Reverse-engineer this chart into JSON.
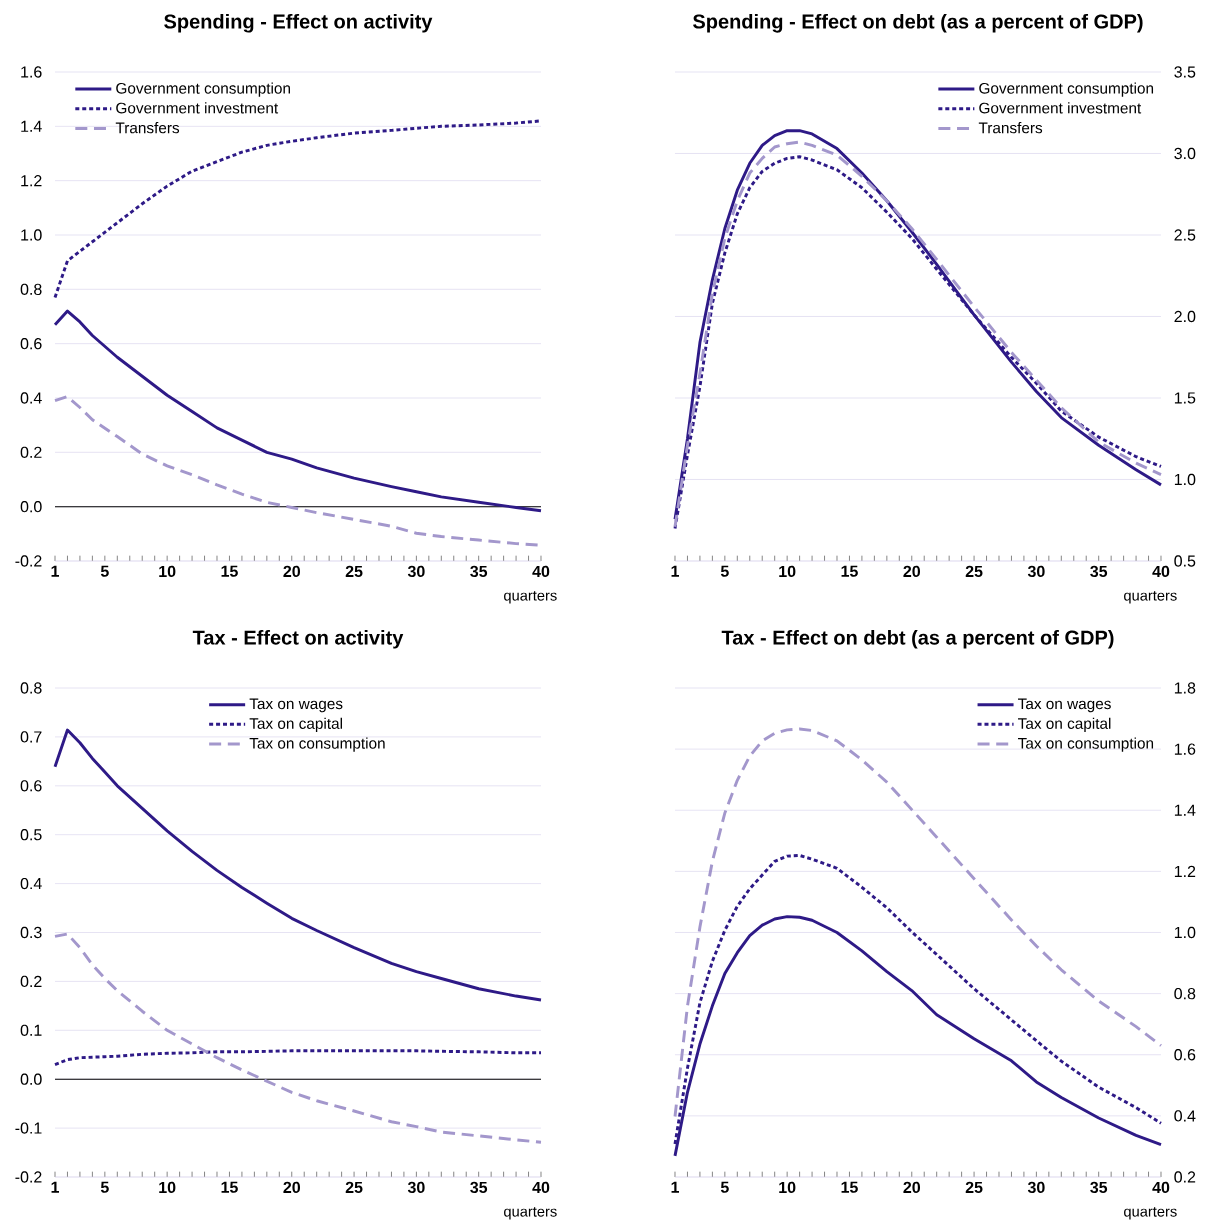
{
  "chart_data": [
    {
      "type": "line",
      "title": "Spending - Effect on activity",
      "xlabel": "quarters",
      "grid": "y",
      "legend": "top left",
      "x": [
        1,
        2,
        3,
        4,
        6,
        8,
        10,
        12,
        14,
        16,
        18,
        20,
        22,
        25,
        28,
        30,
        32,
        35,
        38,
        40
      ],
      "xlim": [
        1,
        40
      ],
      "xticks": [
        1,
        {
          "value": 2,
          "label": null
        },
        {
          "value": 3,
          "label": null
        },
        {
          "value": 4,
          "label": null
        },
        5,
        {
          "value": 6,
          "label": null
        },
        {
          "value": 7,
          "label": null
        },
        {
          "value": 8,
          "label": null
        },
        {
          "value": 9,
          "label": null
        },
        10,
        {
          "value": 11,
          "label": null
        },
        {
          "value": 12,
          "label": null
        },
        {
          "value": 13,
          "label": null
        },
        {
          "value": 14,
          "label": null
        },
        15,
        {
          "value": 16,
          "label": null
        },
        {
          "value": 17,
          "label": null
        },
        {
          "value": 18,
          "label": null
        },
        {
          "value": 19,
          "label": null
        },
        20,
        {
          "value": 21,
          "label": null
        },
        {
          "value": 22,
          "label": null
        },
        {
          "value": 23,
          "label": null
        },
        {
          "value": 24,
          "label": null
        },
        25,
        {
          "value": 26,
          "label": null
        },
        {
          "value": 27,
          "label": null
        },
        {
          "value": 28,
          "label": null
        },
        {
          "value": 29,
          "label": null
        },
        30,
        {
          "value": 31,
          "label": null
        },
        {
          "value": 32,
          "label": null
        },
        {
          "value": 33,
          "label": null
        },
        {
          "value": 34,
          "label": null
        },
        35,
        {
          "value": 36,
          "label": null
        },
        {
          "value": 37,
          "label": null
        },
        {
          "value": 38,
          "label": null
        },
        {
          "value": 39,
          "label": null
        },
        40
      ],
      "ylim": [
        -0.2,
        1.6
      ],
      "yticks": [
        {
          "value": -0.2,
          "label": "-0.2"
        },
        {
          "value": 0,
          "label": "0.0"
        },
        {
          "value": 0.2,
          "label": "0.2"
        },
        {
          "value": 0.4,
          "label": "0.4"
        },
        {
          "value": 0.6,
          "label": "0.6"
        },
        {
          "value": 0.8,
          "label": "0.8"
        },
        {
          "value": 1,
          "label": "1.0"
        },
        {
          "value": 1.2,
          "label": "1.2"
        },
        {
          "value": 1.4,
          "label": "1.4"
        },
        {
          "value": 1.6,
          "label": "1.6"
        }
      ],
      "ref_lines": [
        {
          "axis": "y",
          "value": 0,
          "color": "#000000"
        }
      ],
      "series": [
        {
          "name": "Government consumption",
          "color": "#2e1a87",
          "line_style": "solid",
          "values": [
            0.67,
            0.72,
            0.68,
            0.63,
            0.55,
            0.48,
            0.41,
            0.35,
            0.29,
            0.245,
            0.2,
            0.175,
            0.143,
            0.105,
            0.074,
            0.055,
            0.036,
            0.016,
            -0.003,
            -0.015
          ]
        },
        {
          "name": "Government investment",
          "color": "#2e1a87",
          "line_style": "dotted",
          "values": [
            0.77,
            0.905,
            0.94,
            0.975,
            1.045,
            1.115,
            1.18,
            1.235,
            1.27,
            1.305,
            1.33,
            1.345,
            1.358,
            1.375,
            1.385,
            1.393,
            1.4,
            1.405,
            1.412,
            1.42
          ]
        },
        {
          "name": "Transfers",
          "color": "#a397cc",
          "line_style": "dashed",
          "values": [
            0.39,
            0.405,
            0.365,
            0.32,
            0.258,
            0.194,
            0.15,
            0.118,
            0.08,
            0.046,
            0.016,
            -0.003,
            -0.022,
            -0.047,
            -0.072,
            -0.098,
            -0.11,
            -0.123,
            -0.136,
            -0.142
          ]
        }
      ]
    },
    {
      "type": "line",
      "title": "Spending - Effect on debt (as a percent of GDP)",
      "xlabel": "quarters",
      "grid": "y",
      "legend": "top right",
      "x": [
        1,
        2,
        3,
        4,
        5,
        6,
        7,
        8,
        9,
        10,
        11,
        12,
        14,
        16,
        18,
        20,
        22,
        25,
        28,
        30,
        32,
        35,
        38,
        40
      ],
      "xlim": [
        1,
        40
      ],
      "xticks": [
        1,
        {
          "value": 2,
          "label": null
        },
        {
          "value": 3,
          "label": null
        },
        {
          "value": 4,
          "label": null
        },
        5,
        {
          "value": 6,
          "label": null
        },
        {
          "value": 7,
          "label": null
        },
        {
          "value": 8,
          "label": null
        },
        {
          "value": 9,
          "label": null
        },
        10,
        {
          "value": 11,
          "label": null
        },
        {
          "value": 12,
          "label": null
        },
        {
          "value": 13,
          "label": null
        },
        {
          "value": 14,
          "label": null
        },
        15,
        {
          "value": 16,
          "label": null
        },
        {
          "value": 17,
          "label": null
        },
        {
          "value": 18,
          "label": null
        },
        {
          "value": 19,
          "label": null
        },
        20,
        {
          "value": 21,
          "label": null
        },
        {
          "value": 22,
          "label": null
        },
        {
          "value": 23,
          "label": null
        },
        {
          "value": 24,
          "label": null
        },
        25,
        {
          "value": 26,
          "label": null
        },
        {
          "value": 27,
          "label": null
        },
        {
          "value": 28,
          "label": null
        },
        {
          "value": 29,
          "label": null
        },
        30,
        {
          "value": 31,
          "label": null
        },
        {
          "value": 32,
          "label": null
        },
        {
          "value": 33,
          "label": null
        },
        {
          "value": 34,
          "label": null
        },
        35,
        {
          "value": 36,
          "label": null
        },
        {
          "value": 37,
          "label": null
        },
        {
          "value": 38,
          "label": null
        },
        {
          "value": 39,
          "label": null
        },
        40
      ],
      "y2lim": [
        0.5,
        3.5
      ],
      "y2ticks": [
        0.5,
        {
          "value": 1,
          "label": "1.0"
        },
        1.5,
        {
          "value": 2,
          "label": "2.0"
        },
        2.5,
        {
          "value": 3,
          "label": "3.0"
        },
        3.5
      ],
      "series": [
        {
          "name": "Government consumption",
          "color": "#2e1a87",
          "line_style": "solid",
          "axis": "y2",
          "values": [
            0.756,
            1.25,
            1.84,
            2.225,
            2.54,
            2.775,
            2.94,
            3.05,
            3.11,
            3.14,
            3.14,
            3.12,
            3.03,
            2.88,
            2.71,
            2.52,
            2.32,
            2.01,
            1.72,
            1.54,
            1.38,
            1.21,
            1.06,
            0.967
          ]
        },
        {
          "name": "Government investment",
          "color": "#2e1a87",
          "line_style": "dotted",
          "axis": "y2",
          "values": [
            0.7,
            1.15,
            1.57,
            2.08,
            2.39,
            2.63,
            2.79,
            2.89,
            2.94,
            2.97,
            2.98,
            2.96,
            2.9,
            2.79,
            2.64,
            2.48,
            2.29,
            2.01,
            1.75,
            1.59,
            1.42,
            1.26,
            1.14,
            1.08
          ]
        },
        {
          "name": "Transfers",
          "color": "#a397cc",
          "line_style": "dashed",
          "axis": "y2",
          "values": [
            0.71,
            1.21,
            1.65,
            2.14,
            2.48,
            2.71,
            2.88,
            2.97,
            3.04,
            3.06,
            3.07,
            3.05,
            2.99,
            2.86,
            2.71,
            2.54,
            2.35,
            2.06,
            1.78,
            1.61,
            1.44,
            1.23,
            1.1,
            1.03
          ]
        }
      ]
    },
    {
      "type": "line",
      "title": "Tax - Effect on activity",
      "xlabel": "quarters",
      "grid": "y",
      "legend": "top",
      "x": [
        1,
        2,
        3,
        4,
        5,
        6,
        8,
        10,
        12,
        14,
        16,
        18,
        20,
        22,
        25,
        28,
        30,
        32,
        35,
        38,
        40
      ],
      "xlim": [
        1,
        40
      ],
      "xticks": [
        1,
        {
          "value": 2,
          "label": null
        },
        {
          "value": 3,
          "label": null
        },
        {
          "value": 4,
          "label": null
        },
        5,
        {
          "value": 6,
          "label": null
        },
        {
          "value": 7,
          "label": null
        },
        {
          "value": 8,
          "label": null
        },
        {
          "value": 9,
          "label": null
        },
        10,
        {
          "value": 11,
          "label": null
        },
        {
          "value": 12,
          "label": null
        },
        {
          "value": 13,
          "label": null
        },
        {
          "value": 14,
          "label": null
        },
        15,
        {
          "value": 16,
          "label": null
        },
        {
          "value": 17,
          "label": null
        },
        {
          "value": 18,
          "label": null
        },
        {
          "value": 19,
          "label": null
        },
        20,
        {
          "value": 21,
          "label": null
        },
        {
          "value": 22,
          "label": null
        },
        {
          "value": 23,
          "label": null
        },
        {
          "value": 24,
          "label": null
        },
        25,
        {
          "value": 26,
          "label": null
        },
        {
          "value": 27,
          "label": null
        },
        {
          "value": 28,
          "label": null
        },
        {
          "value": 29,
          "label": null
        },
        30,
        {
          "value": 31,
          "label": null
        },
        {
          "value": 32,
          "label": null
        },
        {
          "value": 33,
          "label": null
        },
        {
          "value": 34,
          "label": null
        },
        35,
        {
          "value": 36,
          "label": null
        },
        {
          "value": 37,
          "label": null
        },
        {
          "value": 38,
          "label": null
        },
        {
          "value": 39,
          "label": null
        },
        40
      ],
      "ylim": [
        -0.2,
        0.8
      ],
      "yticks": [
        -0.2,
        -0.1,
        {
          "value": 0,
          "label": "0.0"
        },
        0.1,
        0.2,
        0.3,
        0.4,
        0.5,
        0.6,
        0.7,
        0.8
      ],
      "ref_lines": [
        {
          "axis": "y",
          "value": 0,
          "color": "#000000"
        }
      ],
      "series": [
        {
          "name": "Tax on wages",
          "color": "#2e1a87",
          "line_style": "solid",
          "values": [
            0.639,
            0.714,
            0.688,
            0.656,
            0.628,
            0.6,
            0.554,
            0.508,
            0.466,
            0.427,
            0.392,
            0.36,
            0.329,
            0.304,
            0.269,
            0.237,
            0.22,
            0.206,
            0.185,
            0.17,
            0.162
          ]
        },
        {
          "name": "Tax on capital",
          "color": "#2e1a87",
          "line_style": "dotted",
          "values": [
            0.03,
            0.04,
            0.044,
            0.045,
            0.046,
            0.047,
            0.051,
            0.053,
            0.054,
            0.056,
            0.056,
            0.057,
            0.058,
            0.058,
            0.058,
            0.058,
            0.058,
            0.057,
            0.056,
            0.054,
            0.054
          ]
        },
        {
          "name": "Tax on consumption",
          "color": "#a397cc",
          "line_style": "dashed",
          "values": [
            0.292,
            0.297,
            0.269,
            0.234,
            0.206,
            0.181,
            0.139,
            0.1,
            0.072,
            0.044,
            0.019,
            -0.004,
            -0.027,
            -0.044,
            -0.065,
            -0.087,
            -0.097,
            -0.108,
            -0.116,
            -0.124,
            -0.129
          ]
        }
      ]
    },
    {
      "type": "line",
      "title": "Tax - Effect on debt (as a percent of GDP)",
      "xlabel": "quarters",
      "grid": "y",
      "legend": "top right",
      "x": [
        1,
        2,
        3,
        4,
        5,
        6,
        7,
        8,
        9,
        10,
        11,
        12,
        14,
        16,
        18,
        20,
        22,
        25,
        28,
        30,
        32,
        35,
        38,
        40
      ],
      "xlim": [
        1,
        40
      ],
      "xticks": [
        1,
        {
          "value": 2,
          "label": null
        },
        {
          "value": 3,
          "label": null
        },
        {
          "value": 4,
          "label": null
        },
        5,
        {
          "value": 6,
          "label": null
        },
        {
          "value": 7,
          "label": null
        },
        {
          "value": 8,
          "label": null
        },
        {
          "value": 9,
          "label": null
        },
        10,
        {
          "value": 11,
          "label": null
        },
        {
          "value": 12,
          "label": null
        },
        {
          "value": 13,
          "label": null
        },
        {
          "value": 14,
          "label": null
        },
        15,
        {
          "value": 16,
          "label": null
        },
        {
          "value": 17,
          "label": null
        },
        {
          "value": 18,
          "label": null
        },
        {
          "value": 19,
          "label": null
        },
        20,
        {
          "value": 21,
          "label": null
        },
        {
          "value": 22,
          "label": null
        },
        {
          "value": 23,
          "label": null
        },
        {
          "value": 24,
          "label": null
        },
        25,
        {
          "value": 26,
          "label": null
        },
        {
          "value": 27,
          "label": null
        },
        {
          "value": 28,
          "label": null
        },
        {
          "value": 29,
          "label": null
        },
        30,
        {
          "value": 31,
          "label": null
        },
        {
          "value": 32,
          "label": null
        },
        {
          "value": 33,
          "label": null
        },
        {
          "value": 34,
          "label": null
        },
        35,
        {
          "value": 36,
          "label": null
        },
        {
          "value": 37,
          "label": null
        },
        {
          "value": 38,
          "label": null
        },
        {
          "value": 39,
          "label": null
        },
        40
      ],
      "y2lim": [
        0.2,
        1.8
      ],
      "y2ticks": [
        0.2,
        0.4,
        0.6,
        0.8,
        {
          "value": 1,
          "label": "1.0"
        },
        1.2,
        1.4,
        1.6,
        1.8
      ],
      "series": [
        {
          "name": "Tax on wages",
          "color": "#2e1a87",
          "line_style": "solid",
          "axis": "y2",
          "values": [
            0.269,
            0.477,
            0.635,
            0.76,
            0.866,
            0.934,
            0.99,
            1.024,
            1.044,
            1.052,
            1.05,
            1.04,
            1.0,
            0.94,
            0.872,
            0.81,
            0.731,
            0.652,
            0.58,
            0.511,
            0.46,
            0.393,
            0.336,
            0.306
          ]
        },
        {
          "name": "Tax on capital",
          "color": "#2e1a87",
          "line_style": "dotted",
          "axis": "y2",
          "values": [
            0.308,
            0.556,
            0.77,
            0.906,
            1.007,
            1.086,
            1.143,
            1.188,
            1.233,
            1.25,
            1.252,
            1.24,
            1.21,
            1.148,
            1.081,
            1.002,
            0.928,
            0.816,
            0.714,
            0.646,
            0.579,
            0.494,
            0.427,
            0.376
          ]
        },
        {
          "name": "Tax on consumption",
          "color": "#a397cc",
          "line_style": "dashed",
          "axis": "y2",
          "values": [
            0.398,
            0.759,
            1.018,
            1.233,
            1.391,
            1.498,
            1.577,
            1.627,
            1.652,
            1.663,
            1.666,
            1.661,
            1.627,
            1.565,
            1.492,
            1.402,
            1.312,
            1.176,
            1.041,
            0.956,
            0.878,
            0.776,
            0.692,
            0.63
          ]
        }
      ]
    }
  ]
}
